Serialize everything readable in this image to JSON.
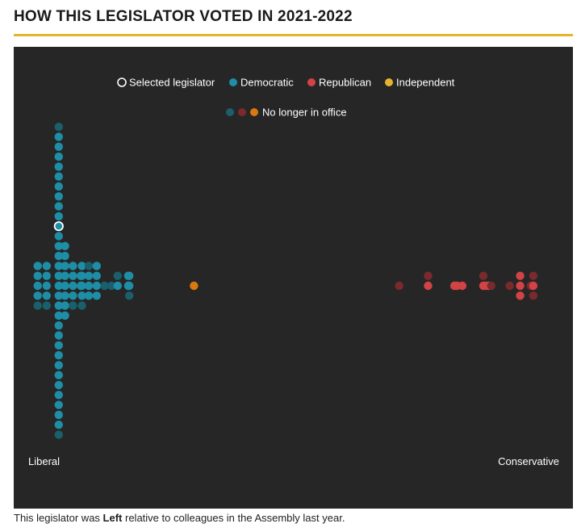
{
  "header": {
    "title": "HOW THIS LEGISLATOR VOTED IN 2021-2022"
  },
  "colors": {
    "accent_rule": "#e6b52c",
    "panel_bg": "#262626",
    "democratic": "#1e8ea6",
    "democratic_former": "#1a5f6b",
    "republican": "#d24346",
    "republican_former": "#7a2a2c",
    "independent": "#e8b22e",
    "independent_former": "#d9790f",
    "selected_stroke": "#ffffff"
  },
  "chart_data": {
    "type": "scatter",
    "subtype": "beeswarm",
    "title": "HOW THIS LEGISLATOR VOTED IN 2021-2022",
    "xlabel": "",
    "ylabel": "",
    "axis_labels": {
      "left": "Liberal",
      "right": "Conservative"
    },
    "xlim": [
      0,
      100
    ],
    "legend": {
      "placement": "top-center",
      "items": [
        {
          "label": "Selected legislator",
          "symbol": "selected"
        },
        {
          "label": "Democratic",
          "symbol": "democratic"
        },
        {
          "label": "Republican",
          "symbol": "republican"
        },
        {
          "label": "Independent",
          "symbol": "independent"
        }
      ],
      "former_label": "No longer in office"
    },
    "series": [
      {
        "name": "Democratic",
        "party": "democratic",
        "values": [
          1.8,
          1.8,
          1.8,
          1.8,
          3.5,
          3.5,
          3.5,
          3.5,
          5.8,
          5.8,
          5.8,
          5.8,
          5.8,
          5.8,
          5.8,
          5.8,
          5.8,
          5.8,
          5.8,
          5.8,
          5.8,
          5.8,
          5.8,
          5.8,
          5.8,
          5.8,
          5.8,
          5.8,
          5.8,
          5.8,
          5.8,
          5.8,
          5.8,
          5.8,
          5.8,
          5.8,
          5.8,
          5.8,
          7.0,
          7.0,
          7.0,
          7.0,
          7.0,
          7.0,
          7.0,
          7.0,
          8.5,
          8.5,
          8.5,
          8.5,
          10.0,
          10.0,
          10.2,
          10.2,
          10.2,
          10.2,
          11.5,
          11.5,
          11.5,
          13.0,
          13.0,
          13.0,
          13.0,
          17.0,
          19.0,
          19.0,
          19.2,
          19.2
        ]
      },
      {
        "name": "Democratic (no longer in office)",
        "party": "democratic",
        "former": true,
        "values": [
          1.8,
          3.5,
          5.8,
          5.8,
          8.5,
          10.2,
          11.5,
          14.5,
          15.8,
          17.0,
          19.2
        ]
      },
      {
        "name": "Independent (no longer in office)",
        "party": "independent",
        "former": true,
        "values": [
          31.5
        ]
      },
      {
        "name": "Republican",
        "party": "republican",
        "values": [
          76.0,
          81.0,
          81.5,
          82.5,
          86.5,
          87.0,
          87.5,
          93.5,
          93.5,
          93.5,
          96.0
        ]
      },
      {
        "name": "Republican (no longer in office)",
        "party": "republican",
        "former": true,
        "values": [
          70.5,
          76.0,
          86.5,
          88.0,
          91.5,
          95.5,
          96.0,
          96.0
        ]
      }
    ],
    "selected": {
      "party": "democratic",
      "value": 5.8
    }
  },
  "footer": {
    "caption_prefix": "This legislator was ",
    "caption_emphasis": "Left",
    "caption_suffix": " relative to colleagues in the Assembly last year."
  }
}
